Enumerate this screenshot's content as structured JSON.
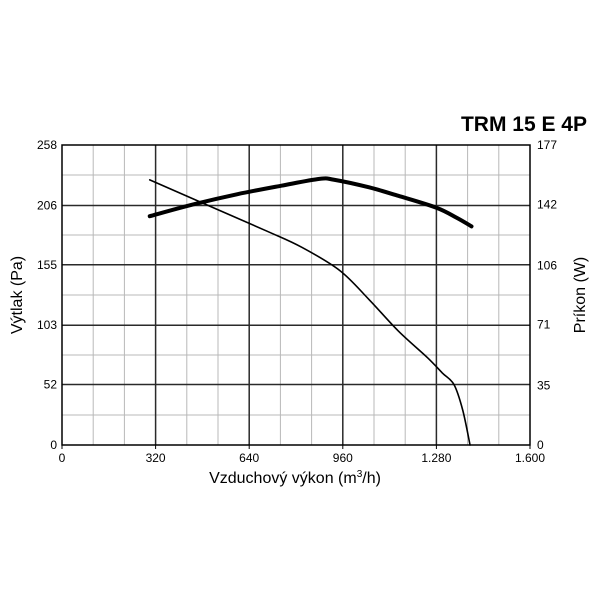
{
  "chart_data": {
    "type": "line",
    "title": "TRM 15 E 4P",
    "xlabel": "Vzduchový výkon (m",
    "xlabel_sup": "3",
    "xlabel_suffix": "/h)",
    "ylabel": "Výtlak (Pa)",
    "y2label": "Príkon (W)",
    "xlim": [
      0,
      1600
    ],
    "ylim": [
      0,
      258
    ],
    "y2lim": [
      0,
      177
    ],
    "x_ticks": [
      "0",
      "320",
      "640",
      "960",
      "1.280",
      "1.600"
    ],
    "x_tick_values": [
      0,
      320,
      640,
      960,
      1280,
      1600
    ],
    "y_ticks": [
      "0",
      "52",
      "103",
      "155",
      "206",
      "258"
    ],
    "y_tick_values": [
      0,
      52,
      103,
      155,
      206,
      258
    ],
    "y2_ticks": [
      "0",
      "35",
      "71",
      "106",
      "142",
      "177"
    ],
    "y2_tick_values": [
      0,
      35,
      71,
      106,
      142,
      177
    ],
    "grid": true,
    "series": [
      {
        "axis": "y",
        "stroke": "thin",
        "x": [
          300,
          500,
          700,
          820,
          950,
          1050,
          1150,
          1250,
          1300,
          1340,
          1370,
          1395
        ],
        "y": [
          228,
          206,
          184,
          170,
          150,
          125,
          98,
          75,
          62,
          52,
          30,
          0
        ]
      },
      {
        "axis": "y2",
        "stroke": "thick",
        "x": [
          300,
          450,
          600,
          750,
          880,
          930,
          1050,
          1150,
          1280,
          1350,
          1400
        ],
        "y": [
          135,
          142,
          148,
          153,
          157,
          156.5,
          152,
          147,
          140,
          134,
          129
        ]
      }
    ]
  }
}
